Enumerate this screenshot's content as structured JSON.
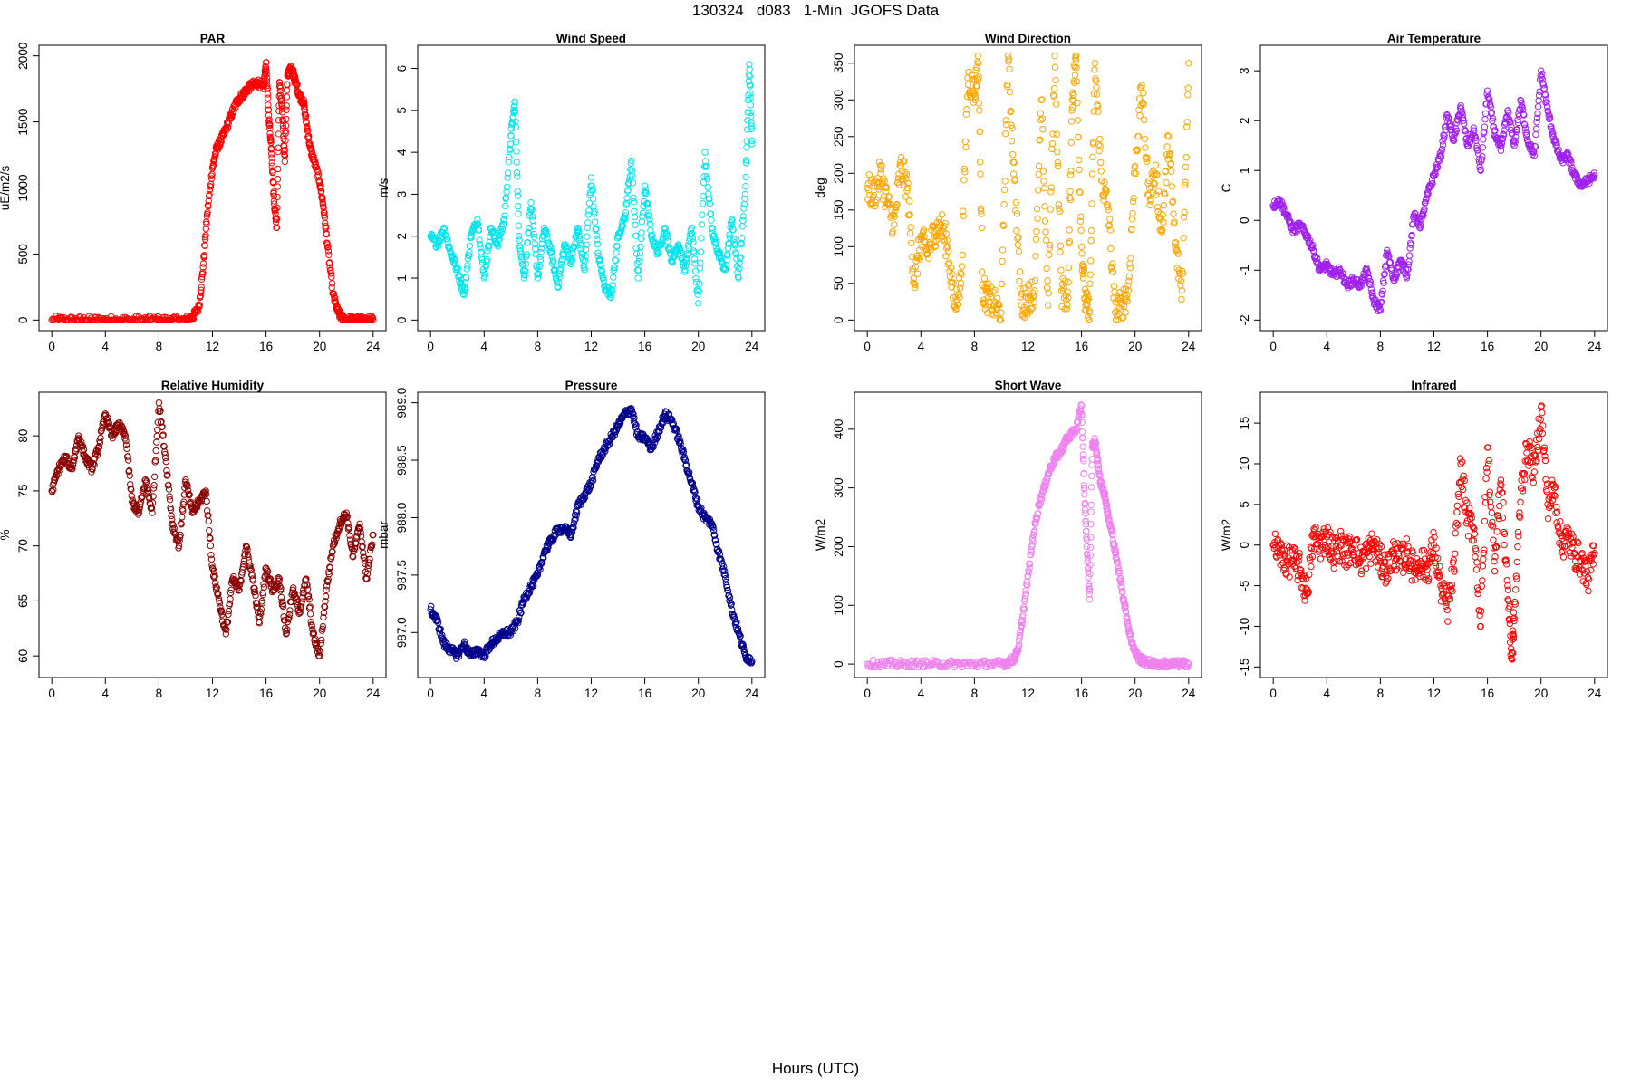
{
  "page_title": "130324   d083   1-Min  JGOFS Data",
  "shared_xlabel": "Hours (UTC)",
  "chart_data": [
    {
      "type": "scatter",
      "title": "PAR",
      "ylabel": "uE/m2/s",
      "color": "#ff0000",
      "xlim": [
        0,
        24
      ],
      "ylim": [
        0,
        2000
      ],
      "xticks": [
        0,
        4,
        8,
        12,
        16,
        20,
        24
      ],
      "yticks": [
        0,
        500,
        1000,
        1500,
        2000
      ],
      "series": [
        {
          "x": [
            0,
            1,
            2,
            3,
            4,
            5,
            6,
            7,
            8,
            9,
            10,
            10.5,
            11,
            11.3,
            11.6,
            12,
            12.3,
            12.6,
            13,
            13.4,
            13.8,
            14.2,
            14.6,
            15,
            15.4,
            15.8,
            16,
            16.2,
            16.4,
            16.6,
            16.8,
            17,
            17.2,
            17.4,
            17.6,
            17.8,
            18,
            18.2,
            18.5,
            18.8,
            19,
            19.3,
            19.6,
            20,
            20.3,
            20.6,
            21,
            21.3,
            21.6,
            22,
            22.5,
            23,
            23.5,
            24
          ],
          "y": [
            0,
            0,
            0,
            0,
            0,
            0,
            0,
            0,
            0,
            0,
            0,
            20,
            100,
            400,
            800,
            1150,
            1300,
            1350,
            1450,
            1550,
            1650,
            1700,
            1750,
            1780,
            1800,
            1750,
            1950,
            1550,
            1300,
            900,
            700,
            1800,
            1600,
            1200,
            1850,
            1900,
            1880,
            1800,
            1700,
            1650,
            1500,
            1300,
            1200,
            1050,
            850,
            550,
            200,
            80,
            20,
            0,
            0,
            0,
            0,
            0
          ]
        }
      ]
    },
    {
      "type": "scatter",
      "title": "Wind Speed",
      "ylabel": "m/s",
      "color": "#00e5ee",
      "xlim": [
        0,
        24
      ],
      "ylim": [
        0,
        6.3
      ],
      "xticks": [
        0,
        4,
        8,
        12,
        16,
        20,
        24
      ],
      "yticks": [
        0,
        1,
        2,
        3,
        4,
        5,
        6
      ],
      "series": [
        {
          "x": [
            0,
            0.5,
            1,
            1.5,
            2,
            2.5,
            3,
            3.5,
            4,
            4.5,
            5,
            5.5,
            6,
            6.3,
            6.6,
            7,
            7.5,
            8,
            8.5,
            9,
            9.5,
            10,
            10.5,
            11,
            11.5,
            12,
            12.5,
            13,
            13.5,
            14,
            14.5,
            15,
            15.5,
            16,
            16.5,
            17,
            17.5,
            18,
            18.5,
            19,
            19.5,
            20,
            20.5,
            21,
            21.5,
            22,
            22.5,
            23,
            23.5,
            23.8,
            24
          ],
          "y": [
            2.0,
            1.8,
            2.2,
            1.6,
            1.2,
            0.6,
            2.0,
            2.4,
            1.0,
            2.2,
            1.8,
            2.4,
            4.4,
            5.2,
            2.0,
            1.0,
            2.8,
            1.0,
            2.2,
            1.6,
            0.8,
            1.8,
            1.4,
            2.2,
            1.2,
            3.4,
            1.6,
            0.8,
            0.6,
            2.0,
            2.4,
            3.8,
            1.0,
            3.2,
            2.0,
            1.6,
            2.2,
            1.4,
            1.8,
            1.2,
            2.2,
            0.4,
            4.0,
            2.2,
            1.6,
            1.2,
            2.4,
            1.0,
            3.0,
            6.1,
            4.2
          ]
        }
      ]
    },
    {
      "type": "scatter",
      "title": "Wind Direction",
      "ylabel": "deg",
      "color": "#ffa500",
      "xlim": [
        0,
        24
      ],
      "ylim": [
        0,
        360
      ],
      "xticks": [
        0,
        4,
        8,
        12,
        16,
        20,
        24
      ],
      "yticks": [
        0,
        50,
        100,
        150,
        200,
        250,
        300,
        350
      ],
      "series": [
        {
          "x": [
            0,
            0.5,
            1,
            1.5,
            2,
            2.5,
            3,
            3.5,
            4,
            4.5,
            5,
            5.5,
            6,
            6.5,
            7,
            7.5,
            8,
            8.3,
            8.6,
            9,
            9.5,
            10,
            10.5,
            11,
            11.5,
            12,
            12.5,
            13,
            13.5,
            14,
            14.5,
            15,
            15.3,
            15.6,
            16,
            16.3,
            16.6,
            17,
            17.5,
            18,
            18.5,
            19,
            19.5,
            20,
            20.5,
            21,
            21.5,
            22,
            22.5,
            23,
            23.5,
            24
          ],
          "y": [
            180,
            170,
            200,
            160,
            130,
            210,
            180,
            50,
            110,
            90,
            120,
            130,
            100,
            20,
            50,
            330,
            310,
            350,
            40,
            30,
            20,
            10,
            360,
            190,
            20,
            30,
            40,
            300,
            20,
            360,
            40,
            30,
            300,
            360,
            100,
            20,
            10,
            350,
            190,
            150,
            10,
            20,
            40,
            210,
            320,
            170,
            200,
            120,
            250,
            100,
            40,
            350
          ]
        }
      ]
    },
    {
      "type": "scatter",
      "title": "Air Temperature",
      "ylabel": "C",
      "color": "#a020f0",
      "xlim": [
        0,
        24
      ],
      "ylim": [
        -2,
        3.3
      ],
      "xticks": [
        0,
        4,
        8,
        12,
        16,
        20,
        24
      ],
      "yticks": [
        -2,
        -1,
        0,
        1,
        2,
        3
      ],
      "series": [
        {
          "x": [
            0,
            0.5,
            1,
            1.5,
            2,
            2.5,
            3,
            3.5,
            4,
            4.5,
            5,
            5.5,
            6,
            6.5,
            7,
            7.5,
            8,
            8.5,
            9,
            9.5,
            10,
            10.5,
            11,
            11.5,
            12,
            12.5,
            13,
            13.5,
            14,
            14.5,
            15,
            15.5,
            16,
            16.5,
            17,
            17.5,
            18,
            18.5,
            19,
            19.5,
            20,
            20.5,
            21,
            21.5,
            22,
            22.5,
            23,
            23.5,
            24
          ],
          "y": [
            0.3,
            0.4,
            0.1,
            -0.2,
            -0.1,
            -0.3,
            -0.6,
            -1.0,
            -0.9,
            -1.1,
            -1.0,
            -1.3,
            -1.2,
            -1.3,
            -1.0,
            -1.6,
            -1.8,
            -0.6,
            -1.2,
            -0.8,
            -1.1,
            0.1,
            -0.1,
            0.5,
            0.9,
            1.3,
            2.1,
            1.6,
            2.3,
            1.5,
            1.8,
            1.0,
            2.6,
            1.8,
            1.4,
            2.2,
            1.5,
            2.4,
            1.6,
            1.3,
            3.0,
            2.2,
            1.6,
            1.2,
            1.3,
            0.9,
            0.7,
            0.8,
            0.9
          ]
        }
      ]
    },
    {
      "type": "scatter",
      "title": "Relative Humidity",
      "ylabel": "%",
      "color": "#8b0000",
      "xlim": [
        0,
        24
      ],
      "ylim": [
        59,
        83
      ],
      "xticks": [
        0,
        4,
        8,
        12,
        16,
        20,
        24
      ],
      "yticks": [
        60,
        65,
        70,
        75,
        80
      ],
      "series": [
        {
          "x": [
            0,
            0.5,
            1,
            1.5,
            2,
            2.5,
            3,
            3.5,
            4,
            4.5,
            5,
            5.5,
            6,
            6.5,
            7,
            7.5,
            8,
            8.5,
            9,
            9.5,
            10,
            10.5,
            11,
            11.5,
            12,
            12.5,
            13,
            13.5,
            14,
            14.5,
            15,
            15.5,
            16,
            16.5,
            17,
            17.5,
            18,
            18.5,
            19,
            19.5,
            20,
            20.5,
            21,
            21.5,
            22,
            22.5,
            23,
            23.5,
            24
          ],
          "y": [
            75,
            77,
            78,
            77,
            80,
            78,
            77,
            79,
            82,
            80,
            81,
            80,
            74,
            73,
            76,
            73,
            83,
            78,
            72,
            70,
            76,
            73,
            74,
            75,
            68,
            65,
            62,
            67,
            66,
            70,
            67,
            63,
            68,
            66,
            67,
            62,
            66,
            64,
            67,
            62,
            60,
            66,
            70,
            72,
            73,
            69,
            72,
            67,
            71
          ]
        }
      ]
    },
    {
      "type": "scatter",
      "title": "Pressure",
      "ylabel": "mbar",
      "color": "#00008b",
      "xlim": [
        0,
        24
      ],
      "ylim": [
        986.7,
        989
      ],
      "xticks": [
        0,
        4,
        8,
        12,
        16,
        20,
        24
      ],
      "yticks": [
        987.0,
        987.5,
        988.0,
        988.5,
        989.0
      ],
      "series": [
        {
          "x": [
            0,
            0.5,
            1,
            1.5,
            2,
            2.5,
            3,
            3.5,
            4,
            4.5,
            5,
            5.5,
            6,
            6.5,
            7,
            7.5,
            8,
            8.5,
            9,
            9.5,
            10,
            10.5,
            11,
            11.5,
            12,
            12.5,
            13,
            13.5,
            14,
            14.5,
            15,
            15.5,
            16,
            16.5,
            17,
            17.5,
            18,
            18.5,
            19,
            19.5,
            20,
            20.5,
            21,
            21.5,
            22,
            22.5,
            23,
            23.5,
            24
          ],
          "y": [
            987.2,
            987.1,
            986.9,
            986.85,
            986.8,
            986.9,
            986.8,
            986.85,
            986.8,
            986.9,
            986.95,
            987.0,
            987.0,
            987.1,
            987.3,
            987.4,
            987.5,
            987.7,
            987.8,
            987.9,
            987.9,
            987.85,
            988.1,
            988.2,
            988.3,
            988.5,
            988.6,
            988.7,
            988.8,
            988.9,
            988.95,
            988.7,
            988.7,
            988.6,
            988.75,
            988.9,
            988.85,
            988.7,
            988.5,
            988.3,
            988.1,
            988.0,
            987.95,
            987.7,
            987.5,
            987.2,
            987.0,
            986.8,
            986.75
          ]
        }
      ]
    },
    {
      "type": "scatter",
      "title": "Short Wave",
      "ylabel": "W/m2",
      "color": "#ee82ee",
      "xlim": [
        0,
        24
      ],
      "ylim": [
        -5,
        445
      ],
      "xticks": [
        0,
        4,
        8,
        12,
        16,
        20,
        24
      ],
      "yticks": [
        0,
        100,
        200,
        300,
        400
      ],
      "series": [
        {
          "x": [
            0,
            1,
            2,
            3,
            4,
            5,
            6,
            7,
            8,
            9,
            10,
            10.5,
            11,
            11.3,
            11.6,
            12,
            12.4,
            12.8,
            13.2,
            13.6,
            14,
            14.4,
            14.8,
            15.2,
            15.6,
            16,
            16.2,
            16.4,
            16.6,
            16.8,
            17,
            17.2,
            17.4,
            17.6,
            17.8,
            18,
            18.3,
            18.6,
            19,
            19.3,
            19.6,
            20,
            20.3,
            20.6,
            21,
            21.5,
            22,
            22.5,
            23,
            23.5,
            24
          ],
          "y": [
            0,
            0,
            0,
            0,
            0,
            0,
            0,
            0,
            0,
            0,
            0,
            3,
            10,
            30,
            80,
            150,
            220,
            270,
            300,
            330,
            350,
            360,
            380,
            390,
            400,
            440,
            300,
            200,
            110,
            370,
            380,
            350,
            310,
            300,
            280,
            250,
            220,
            180,
            130,
            90,
            50,
            20,
            10,
            5,
            2,
            0,
            0,
            0,
            0,
            0,
            0
          ]
        }
      ]
    },
    {
      "type": "scatter",
      "title": "Infrared",
      "ylabel": "W/m2",
      "color": "#ff0000",
      "xlim": [
        0,
        24
      ],
      "ylim": [
        -15,
        17.5
      ],
      "xticks": [
        0,
        4,
        8,
        12,
        16,
        20,
        24
      ],
      "yticks": [
        -15,
        -10,
        -5,
        0,
        5,
        10,
        15
      ],
      "series": [
        {
          "x": [
            0,
            0.5,
            1,
            1.5,
            2,
            2.5,
            3,
            3.5,
            4,
            4.5,
            5,
            5.5,
            6,
            6.5,
            7,
            7.5,
            8,
            8.5,
            9,
            9.5,
            10,
            10.5,
            11,
            11.5,
            12,
            12.5,
            13,
            13.5,
            14,
            14.5,
            15,
            15.5,
            16,
            16.5,
            17,
            17.5,
            17.8,
            18,
            18.5,
            19,
            19.5,
            20,
            20.5,
            21,
            21.5,
            22,
            22.5,
            23,
            23.5,
            24
          ],
          "y": [
            0,
            -1,
            -2,
            -2,
            -3,
            -6,
            1,
            0,
            1,
            -1,
            0,
            -1,
            0,
            -2,
            -1,
            0,
            -2,
            -3,
            -1,
            -2,
            -1,
            -3,
            -2,
            -3,
            0,
            -5,
            -8,
            -3,
            10,
            3,
            2,
            -10,
            12,
            -2,
            8,
            -5,
            -14,
            -9,
            7,
            12,
            9,
            17,
            5,
            7,
            0,
            1,
            -1,
            -2,
            -4,
            -1
          ]
        }
      ]
    }
  ]
}
